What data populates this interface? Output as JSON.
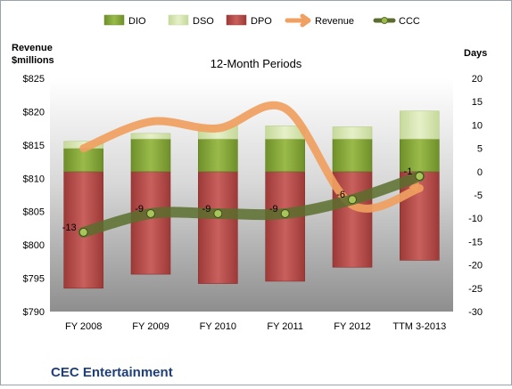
{
  "chart_data": {
    "type": "bar",
    "title": "12-Month Periods",
    "company": "CEC Entertainment",
    "left_axis": {
      "label_line1": "Revenue",
      "label_line2": "$millions",
      "min": 790,
      "max": 825,
      "step": 5,
      "prefix": "$"
    },
    "right_axis": {
      "label": "Days",
      "min": -30,
      "max": 20,
      "step": 5
    },
    "categories": [
      "FY 2008",
      "FY 2009",
      "FY 2010",
      "FY 2011",
      "FY 2012",
      "TTM 3-2013"
    ],
    "legend": [
      "DIO",
      "DSO",
      "DPO",
      "Revenue",
      "CCC"
    ],
    "series": [
      {
        "name": "DIO",
        "axis": "right",
        "color": "#8aab3c",
        "values": [
          5,
          7,
          7,
          7,
          7,
          7
        ]
      },
      {
        "name": "DSO",
        "axis": "right",
        "color": "#d9e8b0",
        "values": [
          1.5,
          1.2,
          2.8,
          2.8,
          2.6,
          6
        ]
      },
      {
        "name": "DPO",
        "axis": "right",
        "color": "#c0504d",
        "values": [
          -25,
          -22,
          -24,
          -23.5,
          -20.5,
          -19
        ]
      },
      {
        "name": "Revenue",
        "axis": "left",
        "color": "#f0a060",
        "values": [
          814.5,
          818.5,
          817.5,
          820.5,
          806,
          808.5
        ]
      },
      {
        "name": "CCC",
        "axis": "right",
        "color": "#5b6e2e",
        "values": [
          -13,
          -9,
          -9,
          -9,
          -6,
          -1
        ]
      }
    ],
    "ccc_labels": [
      "-13",
      "-9",
      "-9",
      "-9",
      "-6",
      "-1"
    ]
  }
}
